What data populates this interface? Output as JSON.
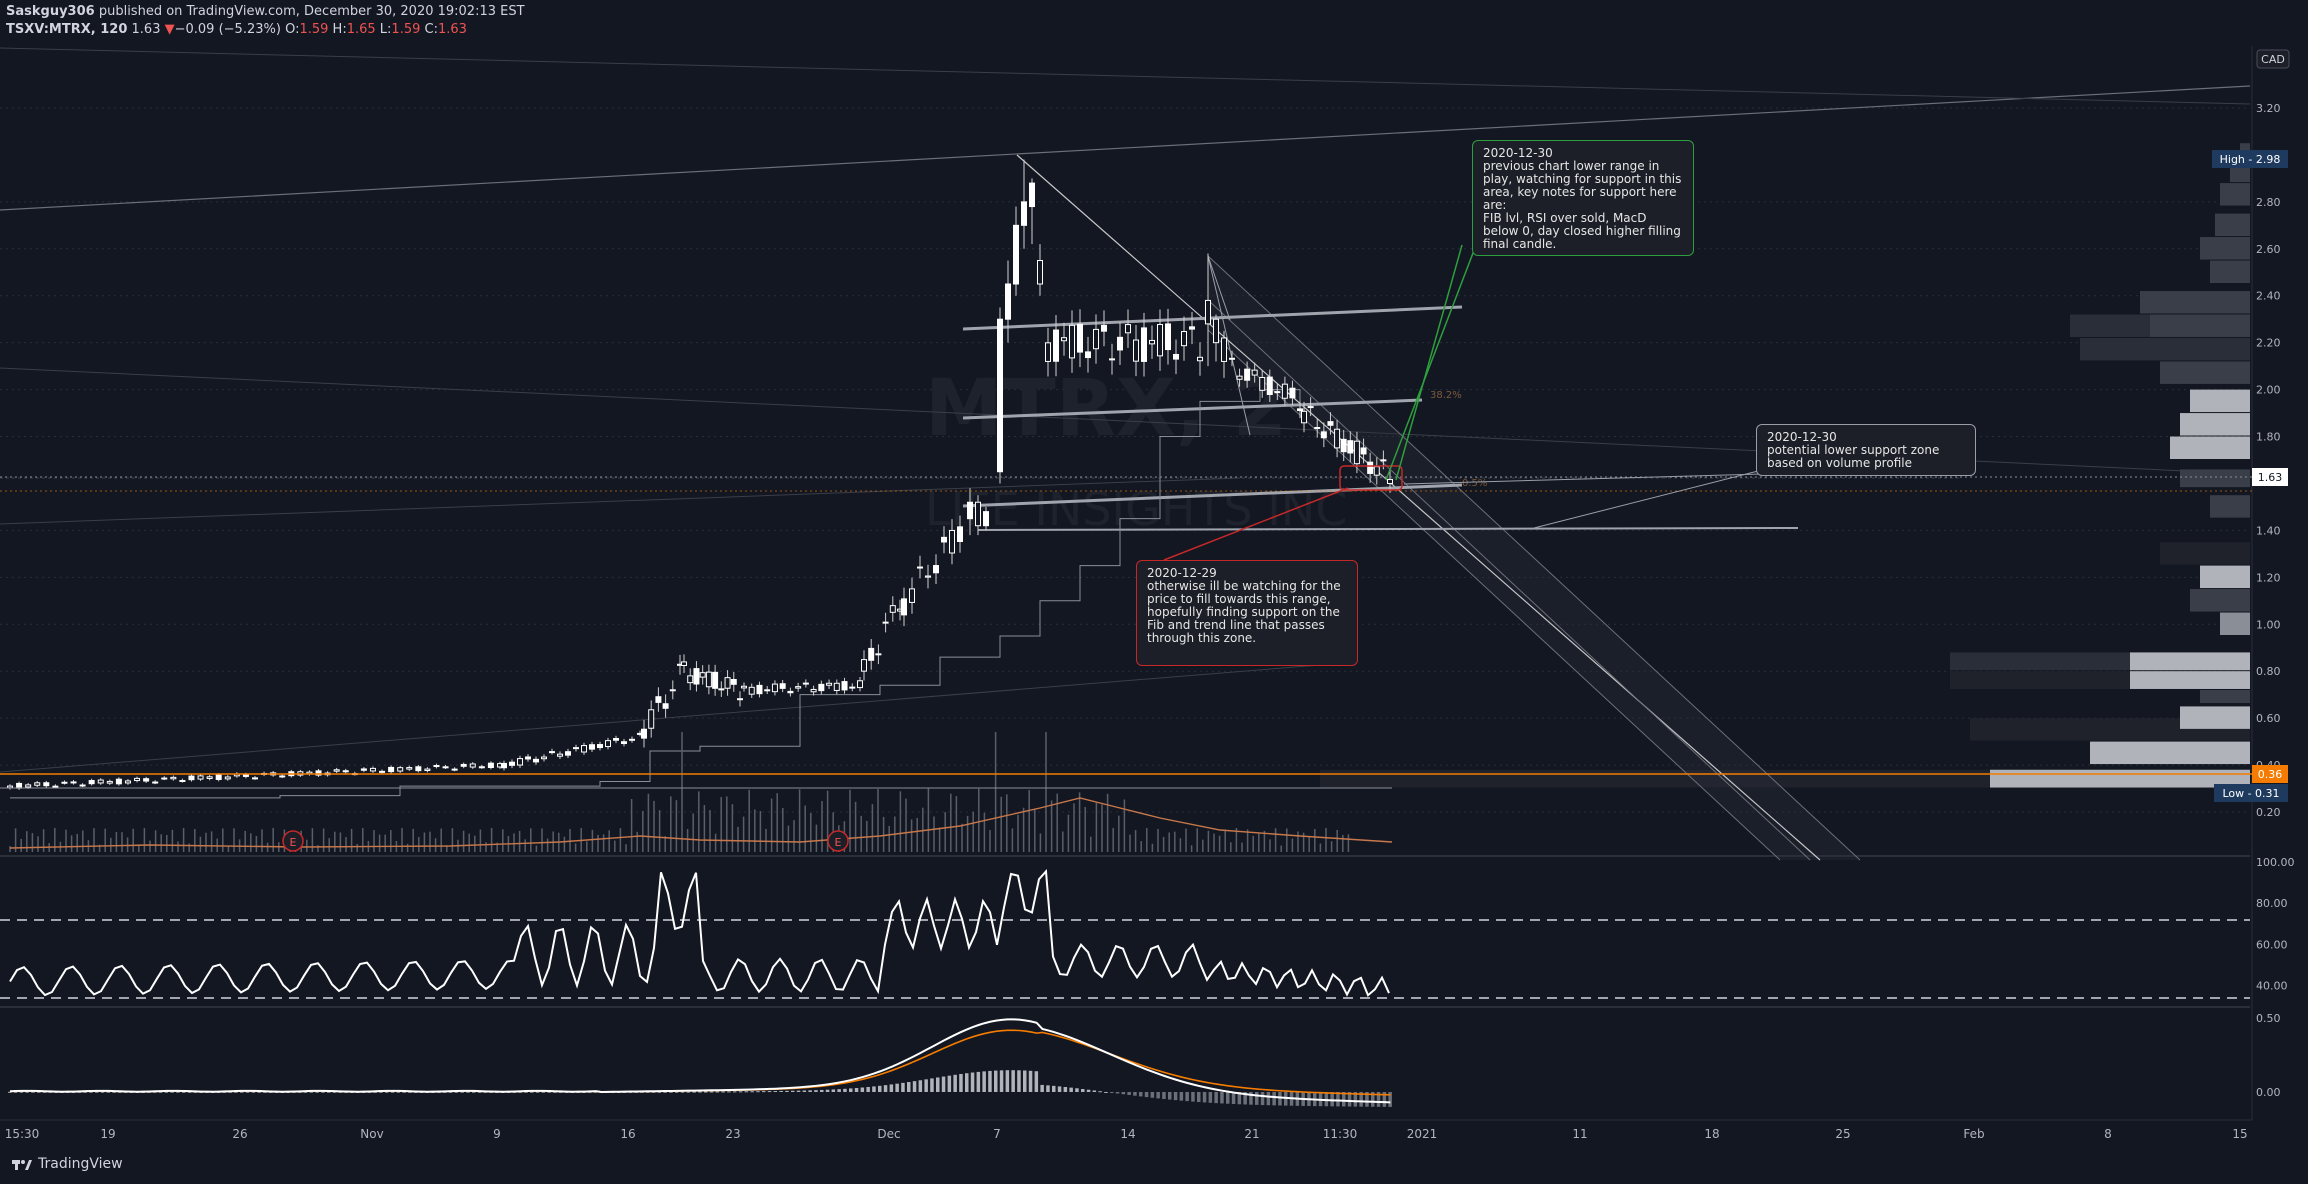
{
  "header": {
    "author": "Saskguy306",
    "published": "published on TradingView.com, December 30, 2020 19:02:13 EST",
    "symbol": "TSXV:MTRX, 120",
    "last": "1.63",
    "change_arrow": "▼",
    "change": "−0.09 (−5.23%)",
    "o_label": "O:",
    "o": "1.59",
    "h_label": "H:",
    "h": "1.65",
    "l_label": "L:",
    "l": "1.59",
    "c_label": "C:",
    "c": "1.63"
  },
  "watermark": {
    "line1": "MTRX, 2",
    "line2": "LIFE INSIGHTS INC"
  },
  "currency_badge": "CAD",
  "price_axis": {
    "ticks": [
      "3.20",
      "2.80",
      "2.60",
      "2.40",
      "2.20",
      "2.00",
      "1.80",
      "1.40",
      "1.20",
      "1.00",
      "0.80",
      "0.60",
      "0.40",
      "0.20"
    ],
    "high_label": "High - 2.98",
    "last_label": "1.63",
    "level_label": "0.36",
    "low_label": "Low - 0.31"
  },
  "rsi_axis": {
    "ticks": [
      "100.00",
      "80.00",
      "60.00",
      "40.00"
    ]
  },
  "macd_axis": {
    "ticks": [
      "0.50",
      "0.00"
    ]
  },
  "time_axis": [
    "15:30",
    "19",
    "26",
    "Nov",
    "9",
    "16",
    "23",
    "Dec",
    "7",
    "14",
    "21",
    "11:30",
    "2021",
    "11",
    "18",
    "25",
    "Feb",
    "8",
    "15"
  ],
  "fib_labels": {
    "fib1": "38.2%",
    "fib2": "0.5%"
  },
  "earnings_marker": "E",
  "notes": [
    {
      "id": "note-green",
      "text": "2020-12-30\nprevious chart lower range in play, watching for support in this area, key notes for support here are:\nFIB lvl, RSI over sold, MacD below 0, day closed higher filling final candle.",
      "color": "#2e9f3e"
    },
    {
      "id": "note-grey",
      "text": "2020-12-30\npotential lower support zone based on volume profile",
      "color": "#9a9ea8"
    },
    {
      "id": "note-red",
      "text": "2020-12-29\notherwise ill be watching for the price to fill towards this range, hopefully finding support on the Fib and trend line that passes through this zone.",
      "color": "#c62828"
    }
  ],
  "footer": {
    "brand": "TradingView"
  },
  "colors": {
    "background": "#131722",
    "candle": "#e0e0e0",
    "orange": "#f57c00",
    "rsi": "#ffffff",
    "macd": "#ffffff",
    "signal": "#f57c00"
  },
  "chart_data": {
    "type": "candlestick",
    "title": "TSXV:MTRX, 120",
    "price_range": [
      0.1,
      3.35
    ],
    "price_series_approx": [
      {
        "period": "Oct wk1",
        "close": 0.31
      },
      {
        "period": "Oct wk2",
        "close": 0.33
      },
      {
        "period": "Oct wk3",
        "close": 0.34
      },
      {
        "period": "Oct wk4",
        "close": 0.36
      },
      {
        "period": "Nov wk1",
        "close": 0.37
      },
      {
        "period": "Nov wk2",
        "close": 0.43
      },
      {
        "period": "Nov wk3",
        "close": 0.5
      },
      {
        "period": "Nov wk4",
        "close": 0.8
      },
      {
        "period": "Dec wk1",
        "close": 0.75
      },
      {
        "period": "Dec 1-4",
        "close": 1.25
      },
      {
        "period": "Dec 7",
        "close": 2.3
      },
      {
        "period": "Dec 8",
        "close": 2.9
      },
      {
        "period": "Dec 10",
        "close": 1.9
      },
      {
        "period": "Dec 14",
        "close": 2.3
      },
      {
        "period": "Dec 18",
        "close": 2.5
      },
      {
        "period": "Dec 21",
        "close": 2.0
      },
      {
        "period": "Dec 24",
        "close": 1.8
      },
      {
        "period": "Dec 28",
        "close": 1.72
      },
      {
        "period": "Dec 30",
        "close": 1.63
      }
    ],
    "high": 2.98,
    "low": 0.31,
    "last": 1.63,
    "rsi_range": [
      20,
      100
    ],
    "rsi_levels": [
      70,
      30
    ],
    "macd_range": [
      -0.15,
      0.55
    ]
  }
}
